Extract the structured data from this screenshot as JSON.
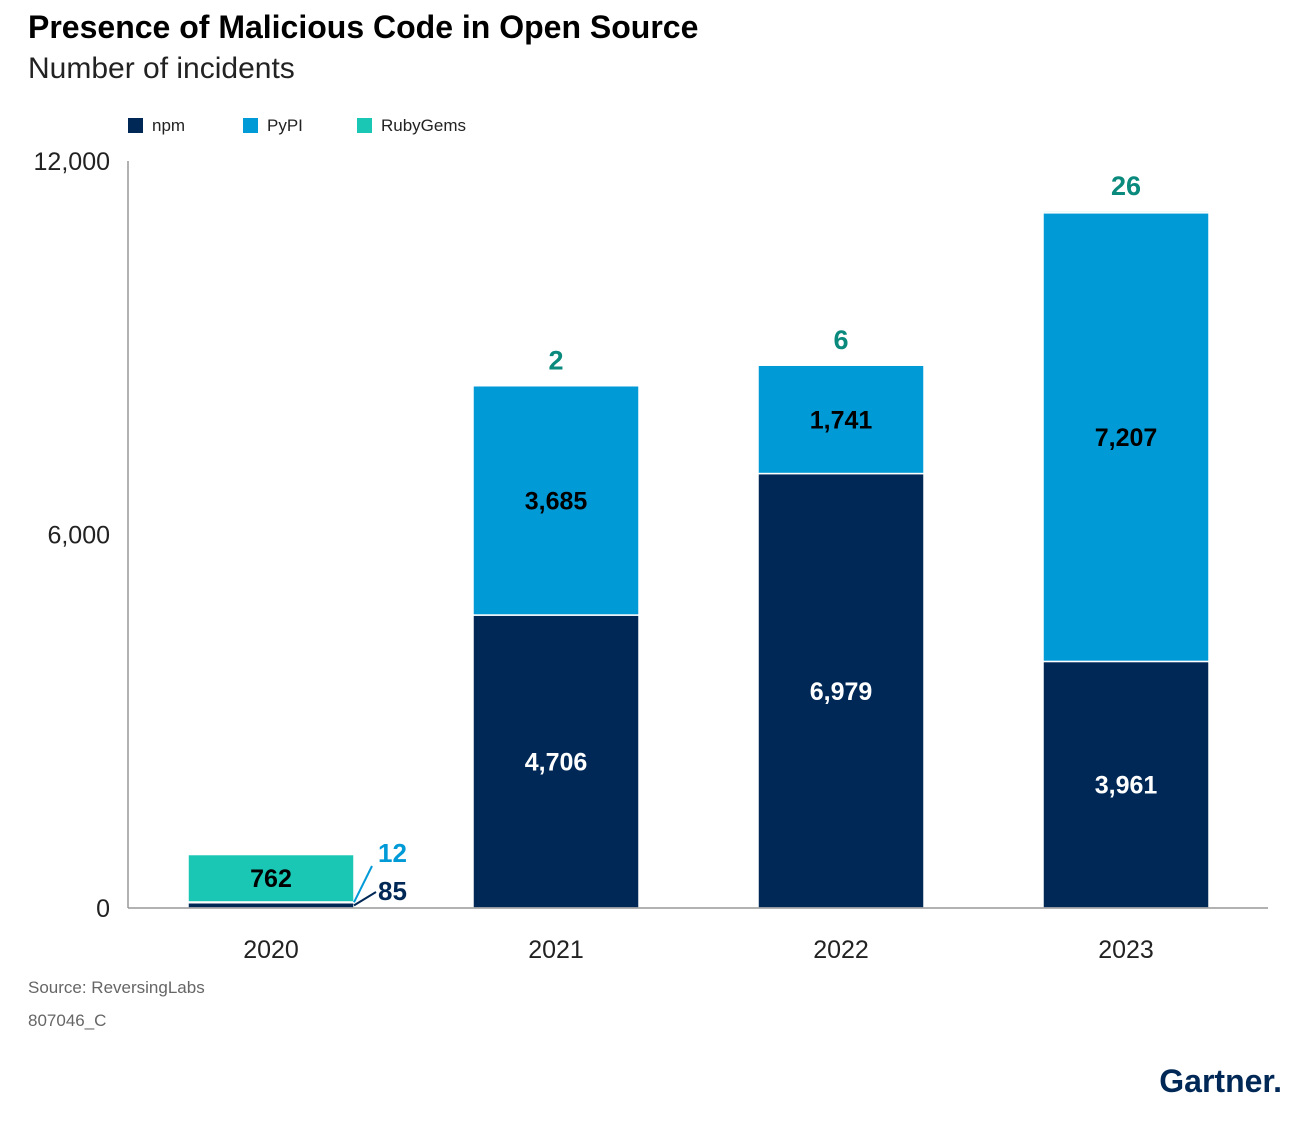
{
  "chart_data": {
    "type": "bar",
    "stacked": true,
    "title": "Presence of Malicious Code in Open Source",
    "subtitle": "Number of incidents",
    "categories": [
      "2020",
      "2021",
      "2022",
      "2023"
    ],
    "series": [
      {
        "name": "npm",
        "color": "#002856",
        "values": [
          85,
          4706,
          6979,
          3961
        ],
        "labels": [
          "85",
          "4,706",
          "6,979",
          "3,961"
        ]
      },
      {
        "name": "PyPI",
        "color": "#009ad7",
        "values": [
          12,
          3685,
          1741,
          7207
        ],
        "labels": [
          "12",
          "3,685",
          "1,741",
          "7,207"
        ]
      },
      {
        "name": "RubyGems",
        "color": "#1ac6b4",
        "values": [
          762,
          2,
          6,
          26
        ],
        "labels": [
          "762",
          "2",
          "6",
          "26"
        ]
      }
    ],
    "yticks": [
      0,
      6000,
      12000
    ],
    "ytick_labels": [
      "0",
      "6,000",
      "12,000"
    ],
    "ylim": [
      0,
      12000
    ],
    "xlabel": "",
    "ylabel": "",
    "legend_position": "top-left",
    "grid": false
  },
  "source": "Source: ReversingLabs",
  "figure_id": "807046_C",
  "brand": "Gartner.",
  "colors": {
    "title": "#000000",
    "axis_text": "#222222",
    "footnote": "#666666",
    "axis_line": "#999999",
    "rubygems_label": "#0a8a7d",
    "brand": "#002856"
  }
}
